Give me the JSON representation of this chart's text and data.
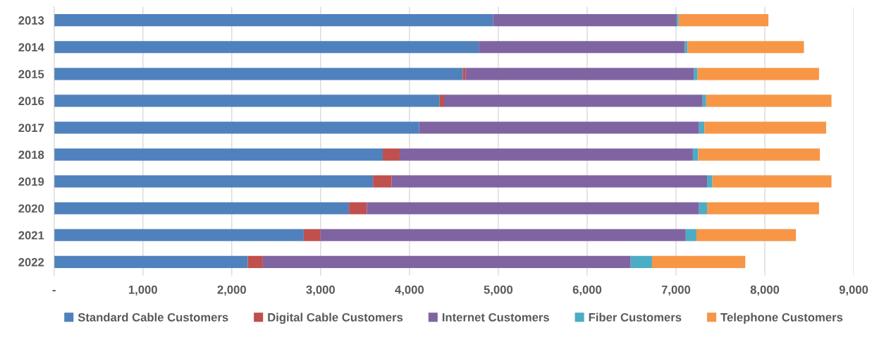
{
  "chart_data": {
    "type": "bar",
    "orientation": "horizontal",
    "stacked": true,
    "categories": [
      "2013",
      "2014",
      "2015",
      "2016",
      "2017",
      "2018",
      "2019",
      "2020",
      "2021",
      "2022"
    ],
    "series": [
      {
        "name": "Standard Cable Customers",
        "color": "#4f81bd",
        "values": [
          4940,
          4780,
          4600,
          4340,
          4110,
          3700,
          3590,
          3320,
          2810,
          2180
        ]
      },
      {
        "name": "Digital Cable Customers",
        "color": "#c0504d",
        "values": [
          0,
          0,
          30,
          50,
          0,
          190,
          210,
          200,
          190,
          170
        ]
      },
      {
        "name": "Internet Customers",
        "color": "#8064a2",
        "values": [
          2070,
          2320,
          2570,
          2910,
          3150,
          3300,
          3550,
          3740,
          4110,
          4140
        ]
      },
      {
        "name": "Fiber Customers",
        "color": "#4bacc6",
        "values": [
          20,
          30,
          40,
          40,
          60,
          60,
          60,
          90,
          120,
          240
        ]
      },
      {
        "name": "Telephone Customers",
        "color": "#f79646",
        "values": [
          1010,
          1310,
          1370,
          1410,
          1370,
          1370,
          1340,
          1260,
          1120,
          1050
        ]
      }
    ],
    "xlim": [
      0,
      9000
    ],
    "xticks": [
      {
        "value": 0,
        "label": "-"
      },
      {
        "value": 1000,
        "label": "1,000"
      },
      {
        "value": 2000,
        "label": "2,000"
      },
      {
        "value": 3000,
        "label": "3,000"
      },
      {
        "value": 4000,
        "label": "4,000"
      },
      {
        "value": 5000,
        "label": "5,000"
      },
      {
        "value": 6000,
        "label": "6,000"
      },
      {
        "value": 7000,
        "label": "7,000"
      },
      {
        "value": 8000,
        "label": "8,000"
      },
      {
        "value": 9000,
        "label": "9,000"
      }
    ],
    "grid": "x",
    "legend": "bottom"
  }
}
